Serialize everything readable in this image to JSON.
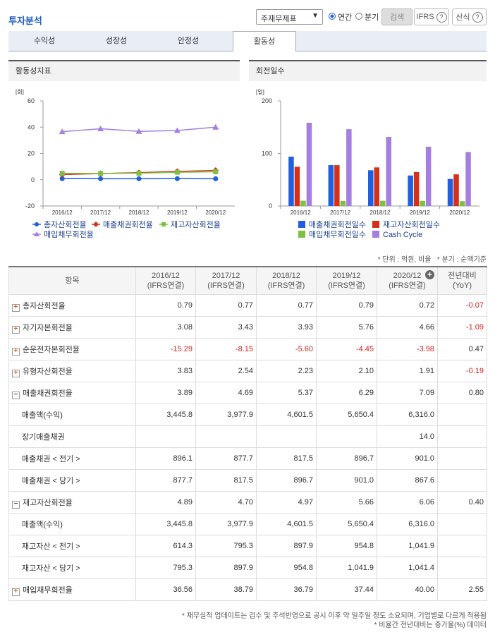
{
  "header": {
    "title": "투자분석",
    "statement_select": "주재무제표",
    "period_options": [
      "연간",
      "분기"
    ],
    "period_selected": 0,
    "search": "검색",
    "ifrs": "IFRS",
    "formula": "산식"
  },
  "tabs": {
    "items": [
      "수익성",
      "성장성",
      "안정성",
      "활동성"
    ],
    "active": 3
  },
  "chart_data": [
    {
      "type": "line",
      "title": "활동성지표",
      "y_unit": "[회]",
      "categories": [
        "2016/12",
        "2017/12",
        "2018/12",
        "2019/12",
        "2020/12"
      ],
      "ylim": [
        -20,
        60
      ],
      "yticks": [
        -20,
        0,
        20,
        40,
        60
      ],
      "grid": false,
      "series": [
        {
          "name": "총자산회전율",
          "color": "#1f5fe0",
          "marker": "circle",
          "values": [
            0.79,
            0.77,
            0.77,
            0.79,
            0.72
          ]
        },
        {
          "name": "매출채권회전율",
          "color": "#d6301a",
          "marker": "diamond",
          "values": [
            3.89,
            4.69,
            5.37,
            6.29,
            7.09
          ]
        },
        {
          "name": "재고자산회전율",
          "color": "#7cc142",
          "marker": "square",
          "values": [
            4.89,
            4.7,
            4.97,
            5.66,
            6.06
          ]
        },
        {
          "name": "매입채무회전율",
          "color": "#a47ee0",
          "marker": "triangle",
          "values": [
            36.56,
            38.79,
            36.79,
            37.44,
            40.0
          ]
        }
      ]
    },
    {
      "type": "bar",
      "title": "회전일수",
      "y_unit": "[일]",
      "categories": [
        "2016/12",
        "2017/12",
        "2018/12",
        "2019/12",
        "2020/12"
      ],
      "ylim": [
        0,
        200
      ],
      "yticks": [
        0,
        100,
        200
      ],
      "grid": false,
      "series": [
        {
          "name": "매출채권회전일수",
          "color": "#1f5fe0",
          "values": [
            93.8,
            77.8,
            68.0,
            58.0,
            51.5
          ]
        },
        {
          "name": "재고자산회전일수",
          "color": "#d6301a",
          "values": [
            74.6,
            77.7,
            73.4,
            64.5,
            60.2
          ]
        },
        {
          "name": "매입채무회전일수",
          "color": "#7cc142",
          "values": [
            10.0,
            9.4,
            9.9,
            9.7,
            9.1
          ]
        },
        {
          "name": "Cash Cycle",
          "color": "#a47ee0",
          "values": [
            158.4,
            146.1,
            131.5,
            112.8,
            102.6
          ]
        }
      ]
    }
  ],
  "notes": [
    "* 단위 : 억원, 비율",
    "* 분기 : 순액기준"
  ],
  "table": {
    "item_header": "항목",
    "columns": [
      {
        "period": "2016/12",
        "basis": "(IFRS연결)"
      },
      {
        "period": "2017/12",
        "basis": "(IFRS연결)"
      },
      {
        "period": "2018/12",
        "basis": "(IFRS연결)"
      },
      {
        "period": "2019/12",
        "basis": "(IFRS연결)"
      },
      {
        "period": "2020/12",
        "basis": "(IFRS연결)"
      }
    ],
    "yoy_header": {
      "title": "전년대비",
      "sub": "(YoY)"
    },
    "rows": [
      {
        "label": "총자산회전율",
        "expanded": false,
        "values": [
          "0.79",
          "0.77",
          "0.77",
          "0.79",
          "0.72"
        ],
        "yoy": "-0.07"
      },
      {
        "label": "자기자본회전율",
        "expanded": false,
        "values": [
          "3.08",
          "3.43",
          "3.93",
          "5.76",
          "4.66"
        ],
        "yoy": "-1.09"
      },
      {
        "label": "순운전자본회전율",
        "expanded": false,
        "values": [
          "-15.29",
          "-8.15",
          "-5.60",
          "-4.45",
          "-3.98"
        ],
        "yoy": "0.47"
      },
      {
        "label": "유형자산회전율",
        "expanded": false,
        "values": [
          "3.83",
          "2.54",
          "2.23",
          "2.10",
          "1.91"
        ],
        "yoy": "-0.19"
      },
      {
        "label": "매출채권회전율",
        "expanded": true,
        "values": [
          "3.89",
          "4.69",
          "5.37",
          "6.29",
          "7.09"
        ],
        "yoy": "0.80"
      },
      {
        "label": "매출액(수익)",
        "values": [
          "3,445.8",
          "3,977.9",
          "4,601.5",
          "5,650.4",
          "6,316.0"
        ],
        "yoy": null
      },
      {
        "label": "장기매출채권",
        "values": [
          null,
          null,
          null,
          null,
          "14.0"
        ],
        "yoy": null
      },
      {
        "label": "매출채권 < 전기 >",
        "values": [
          "896.1",
          "877.7",
          "817.5",
          "896.7",
          "901.0"
        ],
        "yoy": null
      },
      {
        "label": "매출채권 < 당기 >",
        "values": [
          "877.7",
          "817.5",
          "896.7",
          "901.0",
          "867.6"
        ],
        "yoy": null
      },
      {
        "label": "재고자산회전율",
        "expanded": true,
        "values": [
          "4.89",
          "4.70",
          "4.97",
          "5.66",
          "6.06"
        ],
        "yoy": "0.40"
      },
      {
        "label": "매출액(수익)",
        "values": [
          "3,445.8",
          "3,977.9",
          "4,601.5",
          "5,650.4",
          "6,316.0"
        ],
        "yoy": null
      },
      {
        "label": "재고자산 < 전기 >",
        "values": [
          "614.3",
          "795.3",
          "897.9",
          "954.8",
          "1,041.9"
        ],
        "yoy": null
      },
      {
        "label": "재고자산 < 당기 >",
        "values": [
          "795.3",
          "897.9",
          "954.8",
          "1,041.9",
          "1,041.4"
        ],
        "yoy": null
      },
      {
        "label": "매입채무회전율",
        "expanded": false,
        "values": [
          "36.56",
          "38.79",
          "36.79",
          "37.44",
          "40.00"
        ],
        "yoy": "2.55"
      }
    ]
  },
  "footer": [
    "* 재무실적 업데이트는 검수 및 주석반영으로 공시 이후 약 일주일 정도 소요되며, 기업별로 다르게 적용됨",
    "* 비율간 전년대비는 증가율(%) 데이터"
  ]
}
